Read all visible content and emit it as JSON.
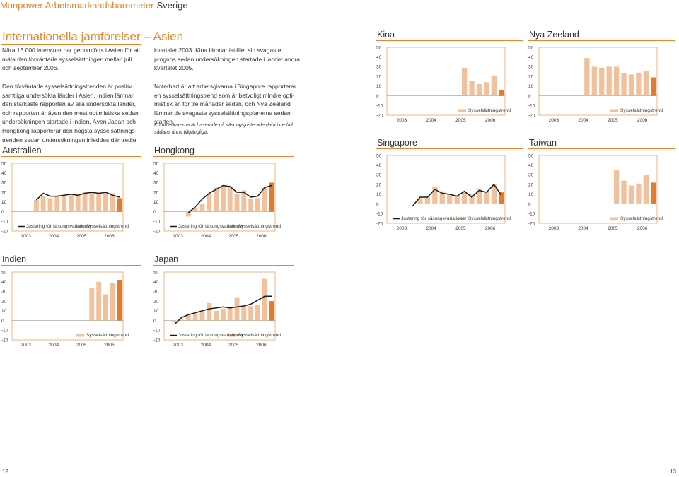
{
  "header": {
    "title": "Manpower Arbetsmarknadsbarometer",
    "country": "Sverige"
  },
  "section_title": "Internationella jämförelser – Asien",
  "paragraphs": [
    "Nära 16 000 intervjuer har genomförts i Asien för att mäta den förväntade sysselsättningen mellan juli och september 2006.",
    "Den förväntade sysselsättningstrenden är positiv i samtliga undersökta länder i Asien. Indien lämnar den starkaste rapporten av alla undersökta länder, och rapporten är även den mest optimistiska sedan undersökningen startade i Indien. Även Japan och Hongkong rapporterar den högsta sysselsättnings-trenden sedan undersökningen inleddes där tredje",
    "kvartalet 2003. Kina lämnar istället sin svagaste prognos sedan undersökningen startade i landet andra kvartalet 2005.",
    "Noterbart är att arbetsgivarna i Singapore rapporterar en sysselsättningstrend som är betydligt mindre opti-mistisk än för tre månader sedan, och Nya Zeeland lämnar de svagaste sysselsättningsplanerna sedan starten."
  ],
  "note": "Kommentarerna är baserade på säsongsjusterade data i de fall sådana finns tillgängliga.",
  "legend": {
    "adjustment": "Justering för säsongsvariationer",
    "trend": "Sysselsättningstrend"
  },
  "page_numbers": {
    "left": "12",
    "right": "13"
  },
  "colors": {
    "accent": "#e8852d",
    "bar_light": "#f2c09a",
    "bar_dark": "#e07b30",
    "line": "#1a1a1a",
    "frame": "#e8a66a"
  },
  "chart_data": [
    {
      "country": "Kina",
      "type": "bar",
      "ylim": [
        -20,
        50
      ],
      "yticks": [
        "50",
        "40",
        "30",
        "20",
        "10",
        "0",
        "-10",
        "-20"
      ],
      "xticks": [
        "2003",
        "2004",
        "2005",
        "2006"
      ],
      "values": [
        29,
        15,
        12,
        14,
        21,
        6
      ],
      "line": null
    },
    {
      "country": "Nya Zeeland",
      "type": "bar",
      "ylim": [
        -20,
        50
      ],
      "yticks": [
        "50",
        "40",
        "30",
        "20",
        "10",
        "0",
        "-10",
        "-20"
      ],
      "xticks": [
        "2003",
        "2004",
        "2005",
        "2006"
      ],
      "values": [
        39,
        30,
        29,
        30,
        30,
        23,
        22,
        24,
        26,
        19
      ],
      "line": null
    },
    {
      "country": "Singapore",
      "type": "bar",
      "ylim": [
        -20,
        50
      ],
      "yticks": [
        "50",
        "40",
        "30",
        "20",
        "10",
        "0",
        "-10",
        "-20"
      ],
      "xticks": [
        "2003",
        "2004",
        "2005",
        "2006"
      ],
      "values": [
        0,
        6,
        7,
        18,
        13,
        10,
        8,
        12,
        10,
        16,
        13,
        20,
        12
      ],
      "line": [
        -2,
        7,
        7,
        15,
        11,
        10,
        8,
        13,
        7,
        14,
        12,
        20,
        9
      ]
    },
    {
      "country": "Taiwan",
      "type": "bar",
      "ylim": [
        -20,
        50
      ],
      "yticks": [
        "50",
        "40",
        "30",
        "20",
        "10",
        "0",
        "-10",
        "-20"
      ],
      "xticks": [
        "2003",
        "2004",
        "2005",
        "2006"
      ],
      "values": [
        35,
        24,
        19,
        21,
        30,
        22
      ],
      "line": null
    },
    {
      "country": "Australien",
      "type": "bar",
      "ylim": [
        -20,
        50
      ],
      "yticks": [
        "50",
        "40",
        "30",
        "20",
        "10",
        "0",
        "-10",
        "-20"
      ],
      "xticks": [
        "2003",
        "2004",
        "2005",
        "2006"
      ],
      "values": [
        12,
        16,
        14,
        16,
        17,
        17,
        16,
        20,
        20,
        19,
        20,
        19,
        14
      ],
      "line": [
        12,
        19,
        16,
        16,
        17,
        18,
        17,
        19,
        20,
        19,
        20,
        17,
        15
      ]
    },
    {
      "country": "Hongkong",
      "type": "bar",
      "ylim": [
        -20,
        50
      ],
      "yticks": [
        "50",
        "40",
        "30",
        "20",
        "10",
        "0",
        "-10",
        "-20"
      ],
      "xticks": [
        "2003",
        "2004",
        "2005",
        "2006"
      ],
      "values": [
        -5,
        4,
        8,
        18,
        25,
        27,
        26,
        18,
        22,
        13,
        14,
        25,
        30
      ],
      "line": [
        -1,
        5,
        13,
        19,
        23,
        27,
        26,
        20,
        20,
        15,
        16,
        25,
        27
      ]
    },
    {
      "country": "Indien",
      "type": "bar",
      "ylim": [
        -20,
        50
      ],
      "yticks": [
        "50",
        "40",
        "30",
        "20",
        "10",
        "0",
        "-10",
        "-20"
      ],
      "xticks": [
        "2003",
        "2004",
        "2005",
        "2006"
      ],
      "values": [
        34,
        40,
        27,
        39,
        42
      ],
      "line": null
    },
    {
      "country": "Japan",
      "type": "bar",
      "ylim": [
        -20,
        50
      ],
      "yticks": [
        "50",
        "40",
        "30",
        "20",
        "10",
        "0",
        "-10",
        "-20"
      ],
      "xticks": [
        "2003",
        "2004",
        "2005",
        "2006"
      ],
      "values": [
        -2,
        1,
        6,
        7,
        9,
        18,
        10,
        12,
        13,
        24,
        15,
        15,
        16,
        43,
        20
      ],
      "line": [
        -4,
        3,
        6,
        8,
        10,
        12,
        13,
        14,
        13,
        14,
        15,
        17,
        21,
        25,
        25
      ]
    }
  ]
}
